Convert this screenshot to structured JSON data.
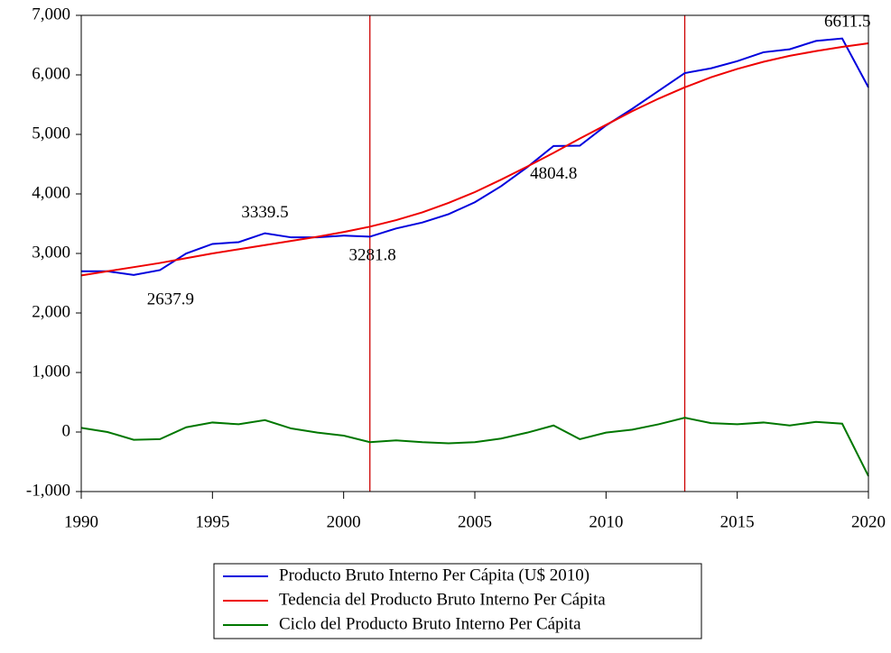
{
  "chart_data": {
    "type": "line",
    "x": [
      1990,
      1991,
      1992,
      1993,
      1994,
      1995,
      1996,
      1997,
      1998,
      1999,
      2000,
      2001,
      2002,
      2003,
      2004,
      2005,
      2006,
      2007,
      2008,
      2009,
      2010,
      2011,
      2012,
      2013,
      2014,
      2015,
      2016,
      2017,
      2018,
      2019,
      2020
    ],
    "series": [
      {
        "name": "Producto Bruto Interno Per Cápita (U$ 2010)",
        "color": "#0000dd",
        "values": [
          2700,
          2700,
          2637.9,
          2720,
          3000,
          3160,
          3190,
          3339.5,
          3270,
          3270,
          3300,
          3281.8,
          3420,
          3520,
          3660,
          3860,
          4130,
          4450,
          4804.8,
          4810,
          5150,
          5430,
          5730,
          6030,
          6110,
          6230,
          6380,
          6430,
          6570,
          6611.5,
          5790
        ]
      },
      {
        "name": "Tedencia del Producto Bruto Interno Per Cápita",
        "color": "#ee0000",
        "values": [
          2630,
          2700,
          2770,
          2840,
          2920,
          3000,
          3070,
          3140,
          3210,
          3280,
          3360,
          3450,
          3560,
          3690,
          3850,
          4030,
          4240,
          4460,
          4690,
          4930,
          5160,
          5390,
          5600,
          5790,
          5960,
          6100,
          6220,
          6320,
          6400,
          6470,
          6530
        ]
      },
      {
        "name": "Ciclo del Producto Bruto Interno Per Cápita",
        "color": "#007700",
        "values": [
          70,
          0,
          -130,
          -120,
          80,
          160,
          130,
          200,
          60,
          -10,
          -60,
          -170,
          -140,
          -170,
          -190,
          -170,
          -110,
          -10,
          110,
          -120,
          -10,
          40,
          130,
          240,
          150,
          130,
          160,
          110,
          170,
          140,
          -740
        ]
      }
    ],
    "xlim": [
      1990,
      2020
    ],
    "xticks": [
      1990,
      1995,
      2000,
      2005,
      2010,
      2015,
      2020
    ],
    "ylim": [
      -1000,
      7000
    ],
    "yticks": [
      {
        "value": -1000,
        "label": "-1,000"
      },
      0,
      {
        "value": 1000,
        "label": "1,000"
      },
      {
        "value": 2000,
        "label": "2,000"
      },
      {
        "value": 3000,
        "label": "3,000"
      },
      {
        "value": 4000,
        "label": "4,000"
      },
      {
        "value": 5000,
        "label": "5,000"
      },
      {
        "value": 6000,
        "label": "6,000"
      },
      {
        "value": 7000,
        "label": "7,000"
      }
    ],
    "vlines": [
      2001,
      2013
    ],
    "vline_color": "#cc0000",
    "annotations": [
      {
        "text": "2637.9",
        "x": 1993.4,
        "y": 2210
      },
      {
        "text": "3339.5",
        "x": 1997,
        "y": 3670
      },
      {
        "text": "3281.8",
        "x": 2001.1,
        "y": 2950
      },
      {
        "text": "4804.8",
        "x": 2008,
        "y": 4320
      },
      {
        "text": "6611.5",
        "x": 2019.2,
        "y": 6880
      }
    ],
    "legend": "bottom"
  }
}
